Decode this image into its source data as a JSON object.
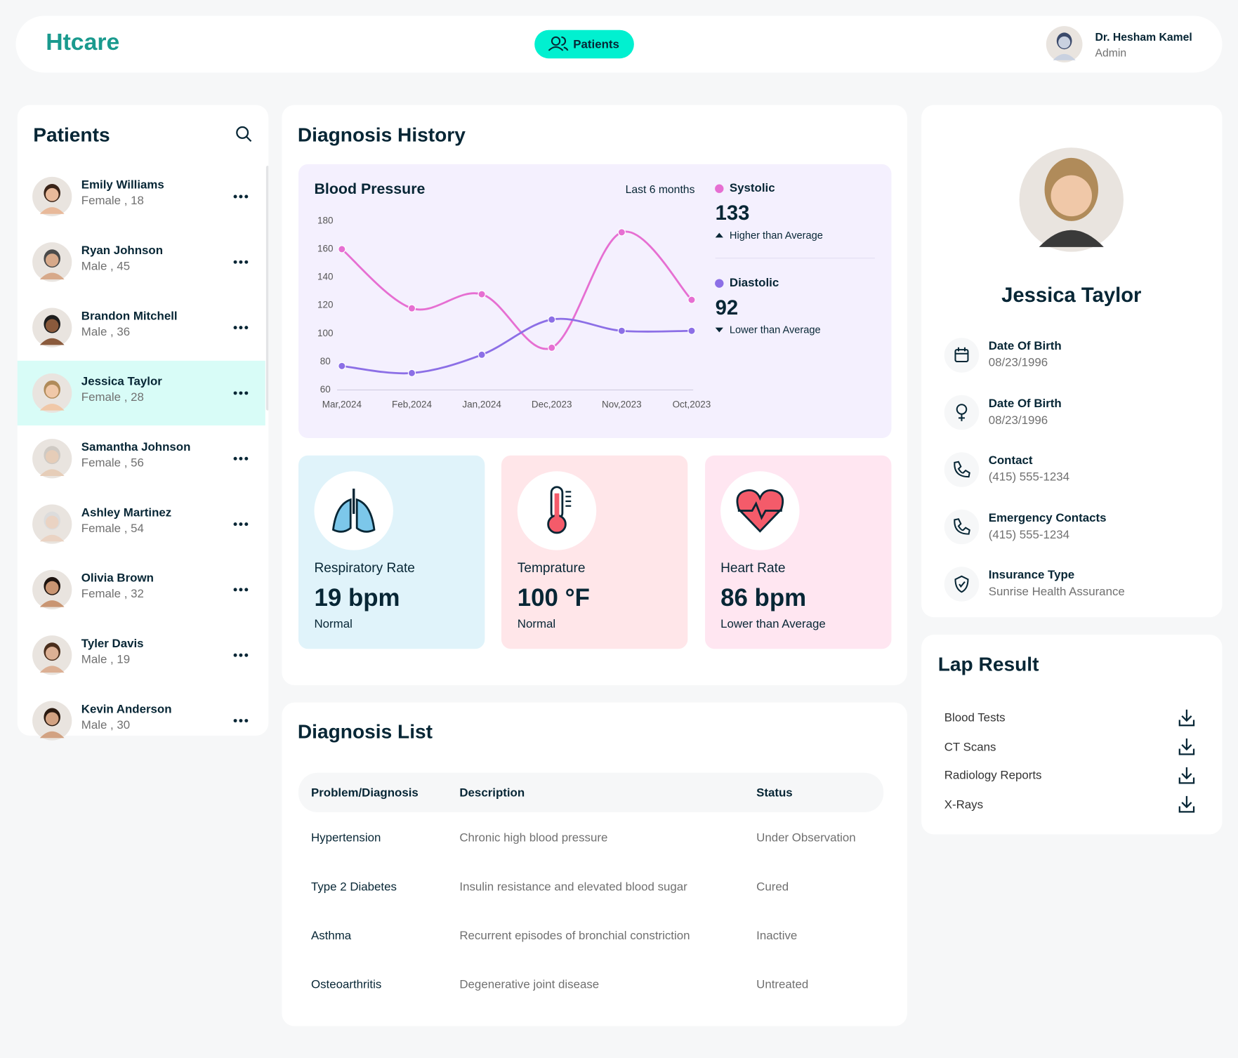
{
  "header": {
    "logo": "Htcare",
    "nav": [
      "Patients"
    ],
    "user": {
      "name": "Dr. Hesham Kamel",
      "role": "Admin"
    }
  },
  "patients": {
    "title": "Patients",
    "active": 3,
    "list": [
      {
        "name": "Emily Williams",
        "info": "Female , 18"
      },
      {
        "name": "Ryan Johnson",
        "info": "Male , 45"
      },
      {
        "name": "Brandon Mitchell",
        "info": "Male , 36"
      },
      {
        "name": "Jessica Taylor",
        "info": "Female , 28"
      },
      {
        "name": "Samantha Johnson",
        "info": "Female , 56"
      },
      {
        "name": "Ashley Martinez",
        "info": "Female , 54"
      },
      {
        "name": "Olivia Brown",
        "info": "Female , 32"
      },
      {
        "name": "Tyler Davis",
        "info": "Male , 19"
      },
      {
        "name": "Kevin Anderson",
        "info": "Male , 30"
      }
    ]
  },
  "diagnosis_history": {
    "title": "Diagnosis History",
    "chart": {
      "type": "line",
      "title": "Blood Pressure",
      "period": "Last 6 months",
      "categories": [
        "Mar,2024",
        "Feb,2024",
        "Jan,2024",
        "Dec,2023",
        "Nov,2023",
        "Oct,2023"
      ],
      "series": [
        {
          "name": "Systolic",
          "color": "#e66fd2",
          "values": [
            160,
            118,
            128,
            90,
            172,
            124
          ]
        },
        {
          "name": "Diastolic",
          "color": "#8c6fe6",
          "values": [
            77,
            72,
            85,
            110,
            102,
            102
          ]
        }
      ],
      "ylim": [
        60,
        180
      ],
      "yticks": [
        60,
        80,
        100,
        120,
        140,
        160,
        180
      ]
    },
    "readings": [
      {
        "value": "133",
        "note": "Higher than Average",
        "trend": "up"
      },
      {
        "value": "92",
        "note": "Lower than Average",
        "trend": "down"
      }
    ],
    "vitals": [
      {
        "label": "Respiratory Rate",
        "value": "19 bpm",
        "status": "Normal",
        "color": "#e0f3fa"
      },
      {
        "label": "Temprature",
        "value": "100 °F",
        "status": "Normal",
        "color": "#ffe6e9"
      },
      {
        "label": "Heart Rate",
        "value": "86 bpm",
        "status": "Lower than Average",
        "color": "#ffe6f1"
      }
    ]
  },
  "diagnosis_list": {
    "title": "Diagnosis List",
    "columns": [
      "Problem/Diagnosis",
      "Description",
      "Status"
    ],
    "rows": [
      [
        "Hypertension",
        "Chronic high blood pressure",
        "Under Observation"
      ],
      [
        "Type 2 Diabetes",
        "Insulin resistance and elevated blood sugar",
        "Cured"
      ],
      [
        "Asthma",
        "Recurrent episodes of bronchial constriction",
        "Inactive"
      ],
      [
        "Osteoarthritis",
        "Degenerative joint disease",
        "Untreated"
      ]
    ]
  },
  "profile": {
    "name": "Jessica Taylor",
    "fields": [
      {
        "label": "Date Of Birth",
        "value": "08/23/1996"
      },
      {
        "label": "Date Of Birth",
        "value": "08/23/1996"
      },
      {
        "label": "Contact",
        "value": "(415) 555-1234"
      },
      {
        "label": "Emergency Contacts",
        "value": "(415) 555-1234"
      },
      {
        "label": "Insurance Type",
        "value": "Sunrise Health Assurance"
      }
    ]
  },
  "lab_results": {
    "title": "Lap Result",
    "items": [
      "Blood Tests",
      "CT Scans",
      "Radiology Reports",
      "X-Rays"
    ]
  }
}
